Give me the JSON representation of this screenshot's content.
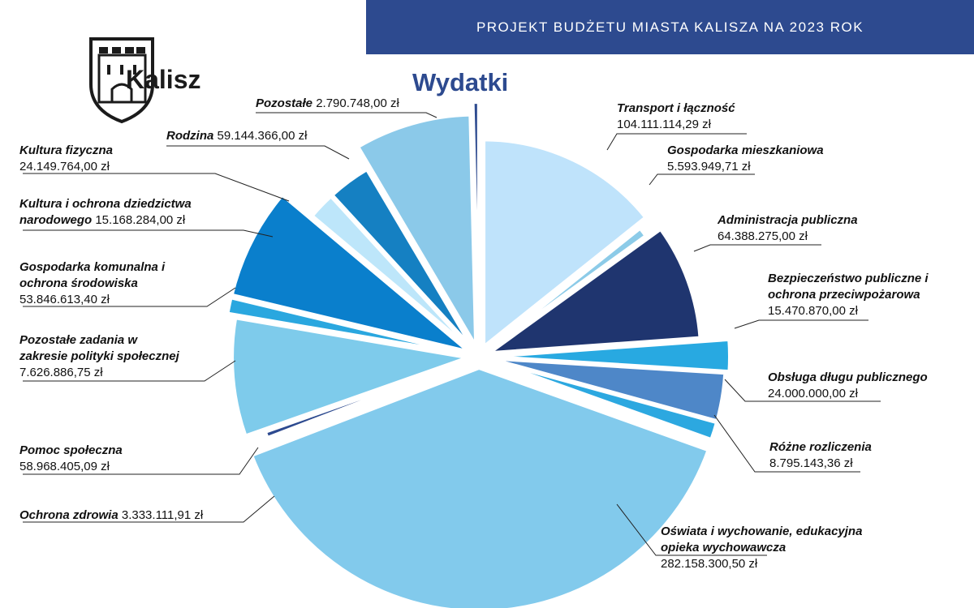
{
  "header": {
    "banner": "PROJEKT BUDŻETU MIASTA KALISZA NA 2023 ROK"
  },
  "logo": {
    "text": "Kalisz"
  },
  "colors": {
    "banner": "#2d4a8f",
    "title": "#2d4a8f"
  },
  "chart_data": {
    "type": "pie",
    "title": "Wydatki",
    "unit": "zł",
    "slices": [
      {
        "name": "Transport i łączność",
        "value": 104111114.29,
        "value_label": "104.111.114,29 zł",
        "color": "#bfe3fb"
      },
      {
        "name": "Gospodarka mieszkaniowa",
        "value": 5593949.71,
        "value_label": "5.593.949,71 zł",
        "color": "#8ccbe8"
      },
      {
        "name": "Administracja publiczna",
        "value": 64388275.0,
        "value_label": "64.388.275,00 zł",
        "color": "#1f356f"
      },
      {
        "name": "Bezpieczeństwo publiczne i ochrona przeciwpożarowa",
        "value": 15470870.0,
        "value_label": "15.470.870,00 zł",
        "color": "#28a9e1"
      },
      {
        "name": "Obsługa długu publicznego",
        "value": 24000000.0,
        "value_label": "24.000.000,00 zł",
        "color": "#4e87c8"
      },
      {
        "name": "Różne rozliczenia",
        "value": 8795143.36,
        "value_label": "8.795.143,36 zł",
        "color": "#2ca8e0"
      },
      {
        "name": "Oświata i wychowanie, edukacyjna opieka wychowawcza",
        "value": 282158300.5,
        "value_label": "282.158.300,50 zł",
        "color": "#82caec"
      },
      {
        "name": "Ochrona zdrowia",
        "value": 3333111.91,
        "value_label": "3.333.111,91 zł",
        "color": "#2d4a8f"
      },
      {
        "name": "Pomoc społeczna",
        "value": 58968405.09,
        "value_label": "58.968.405,09 zł",
        "color": "#7ecbeb"
      },
      {
        "name": "Pozostałe zadania w zakresie polityki społecznej",
        "value": 7626886.75,
        "value_label": "7.626.886,75 zł",
        "color": "#2aa7df"
      },
      {
        "name": "Gospodarka komunalna i ochrona środowiska",
        "value": 53846613.4,
        "value_label": "53.846.613,40 zł",
        "color": "#0a7fcc"
      },
      {
        "name": "Kultura i ochrona dziedzictwa narodowego",
        "value": 15168284.0,
        "value_label": "15.168.284,00 zł",
        "color": "#bde6fa"
      },
      {
        "name": "Kultura fizyczna",
        "value": 24149764.0,
        "value_label": "24.149.764,00 zł",
        "color": "#1580c2"
      },
      {
        "name": "Rodzina",
        "value": 59144366.0,
        "value_label": "59.144.366,00 zł",
        "color": "#8bc9e9"
      },
      {
        "name": "Pozostałe",
        "value": 2790748.0,
        "value_label": "2.790.748,00 zł",
        "color": "#2d4a8f"
      }
    ]
  }
}
